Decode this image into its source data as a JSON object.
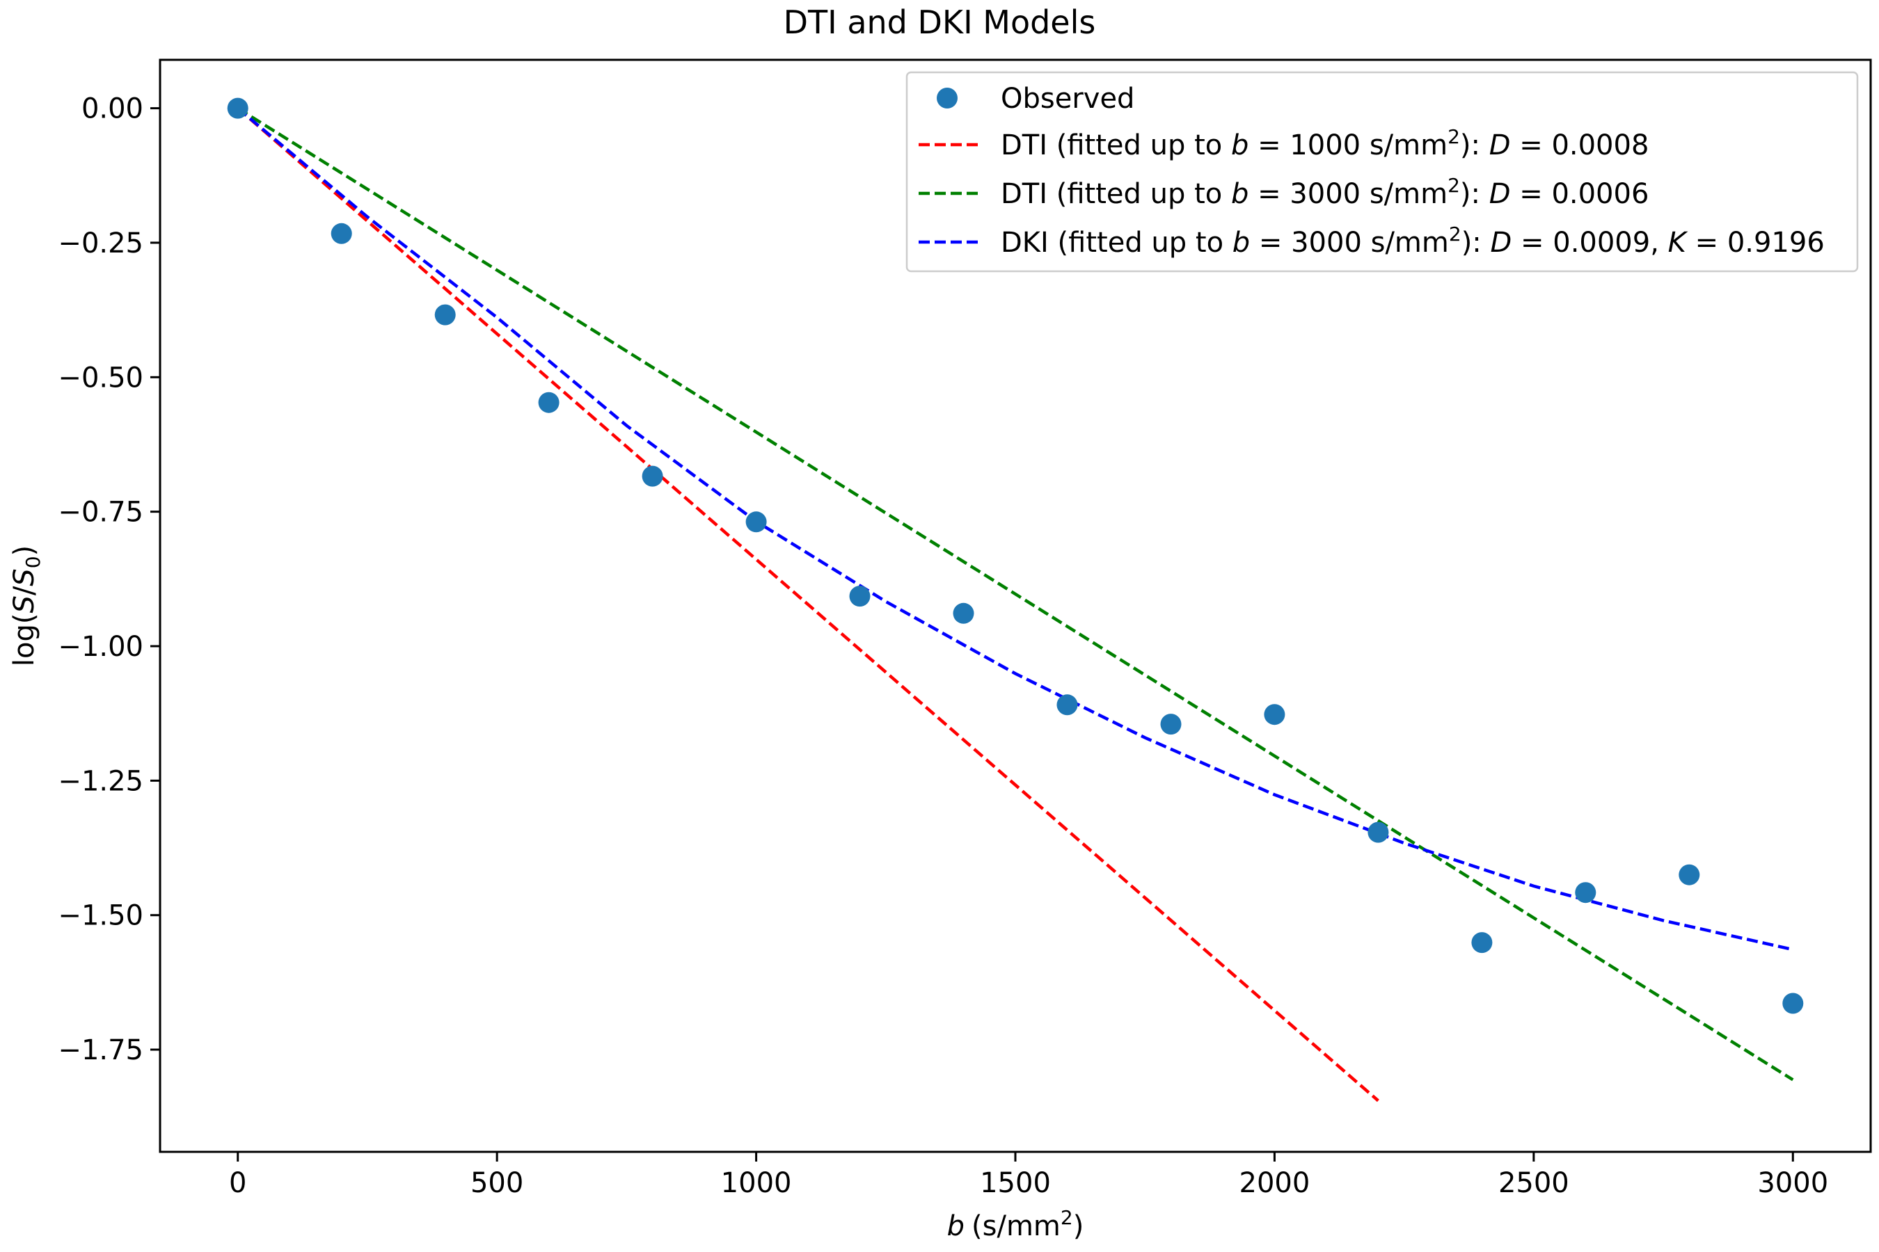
{
  "chart_data": {
    "type": "line",
    "title": "DTI and DKI Models",
    "xlabel": {
      "var": "b",
      "unit": "(s/mm",
      "unit_exp": "2",
      "unit_close": ")"
    },
    "ylabel": {
      "prefix": "log(",
      "num": "S",
      "slash": "/",
      "den": "S",
      "den_sub": "0",
      "suffix": ")"
    },
    "xlim": [
      -150,
      3150
    ],
    "ylim": [
      -1.94,
      0.09
    ],
    "x_ticks": [
      0,
      500,
      1000,
      1500,
      2000,
      2500,
      3000
    ],
    "x_tick_labels": [
      "0",
      "500",
      "1000",
      "1500",
      "2000",
      "2500",
      "3000"
    ],
    "y_ticks": [
      0.0,
      -0.25,
      -0.5,
      -0.75,
      -1.0,
      -1.25,
      -1.5,
      -1.75
    ],
    "y_tick_labels": [
      "0.00",
      "−0.25",
      "−0.50",
      "−0.75",
      "−1.00",
      "−1.25",
      "−1.50",
      "−1.75"
    ],
    "legend_position": "top-right",
    "series": [
      {
        "name": "Observed",
        "kind": "scatter",
        "color": "#1f77b4",
        "x": [
          0,
          200,
          400,
          600,
          800,
          1000,
          1200,
          1400,
          1600,
          1800,
          2000,
          2200,
          2400,
          2600,
          2800,
          3000
        ],
        "y": [
          0.0,
          -0.233,
          -0.384,
          -0.547,
          -0.684,
          -0.769,
          -0.907,
          -0.939,
          -1.109,
          -1.145,
          -1.127,
          -1.346,
          -1.551,
          -1.458,
          -1.425,
          -1.664
        ],
        "legend": {
          "text": "Observed"
        }
      },
      {
        "name": "DTI (fitted up to b = 1000)",
        "kind": "line",
        "style": "dashed",
        "color": "#ff0000",
        "x": [
          0,
          2200
        ],
        "y": [
          0.0,
          -1.845
        ],
        "legend": {
          "pre": "DTI (fitted up to ",
          "var": "b",
          "mid": " = 1000 s/mm",
          "exp": "2",
          "post": "): ",
          "p1": "D",
          "v1": " = 0.0008",
          "p2": "",
          "v2": ""
        }
      },
      {
        "name": "DTI (fitted up to b = 3000)",
        "kind": "line",
        "style": "dashed",
        "color": "#008000",
        "x": [
          0,
          3000
        ],
        "y": [
          0.0,
          -1.806
        ],
        "legend": {
          "pre": "DTI (fitted up to ",
          "var": "b",
          "mid": " = 3000 s/mm",
          "exp": "2",
          "post": "): ",
          "p1": "D",
          "v1": " = 0.0006",
          "p2": "",
          "v2": ""
        }
      },
      {
        "name": "DKI (fitted up to b = 3000)",
        "kind": "line",
        "style": "dashed",
        "color": "#0000ff",
        "x": [
          0,
          250,
          500,
          750,
          1000,
          1250,
          1500,
          1750,
          2000,
          2250,
          2500,
          2750,
          3000
        ],
        "y": [
          0.0,
          -0.202,
          -0.389,
          -0.59,
          -0.768,
          -0.917,
          -1.051,
          -1.17,
          -1.276,
          -1.366,
          -1.446,
          -1.51,
          -1.564
        ],
        "legend": {
          "pre": "DKI (fitted up to ",
          "var": "b",
          "mid": " = 3000 s/mm",
          "exp": "2",
          "post": "): ",
          "p1": "D",
          "v1": " = 0.0009, ",
          "p2": "K",
          "v2": " = 0.9196"
        }
      }
    ]
  }
}
